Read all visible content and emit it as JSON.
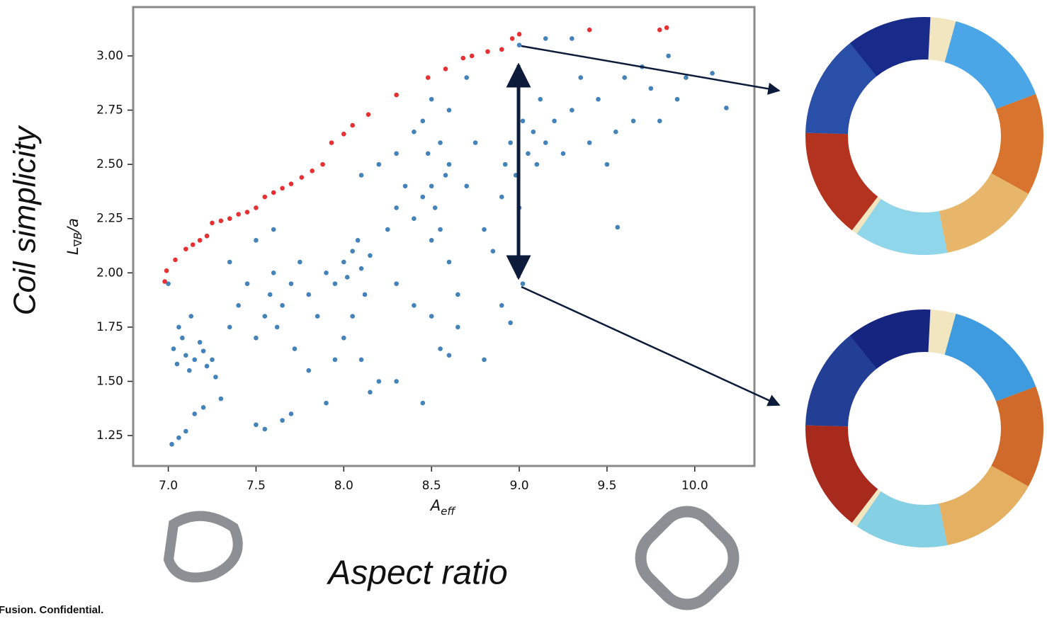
{
  "chart_data": {
    "type": "scatter",
    "ylabel": [
      "L",
      "∇B",
      "/a"
    ],
    "xlabel": [
      "A",
      "eff"
    ],
    "annotations": [
      "Coil simplicity",
      "Aspect ratio",
      "Fusion. Confidential."
    ],
    "xlim": [
      6.8,
      10.34
    ],
    "ylim": [
      1.11,
      3.225
    ],
    "xticks": [
      {
        "value": 7.0,
        "label": "7.0"
      },
      {
        "value": 7.5,
        "label": "7.5"
      },
      {
        "value": 8.0,
        "label": "8.0"
      },
      {
        "value": 8.5,
        "label": "8.5"
      },
      {
        "value": 9.0,
        "label": "9.0"
      },
      {
        "value": 9.5,
        "label": "9.5"
      },
      {
        "value": 10.0,
        "label": "10.0"
      }
    ],
    "yticks": [
      {
        "value": 1.25,
        "label": "1.25"
      },
      {
        "value": 1.5,
        "label": "1.50"
      },
      {
        "value": 1.75,
        "label": "1.75"
      },
      {
        "value": 2.0,
        "label": "2.00"
      },
      {
        "value": 2.25,
        "label": "2.25"
      },
      {
        "value": 2.5,
        "label": "2.50"
      },
      {
        "value": 2.75,
        "label": "2.75"
      },
      {
        "value": 3.0,
        "label": "3.00"
      }
    ],
    "grid": false,
    "series": [
      {
        "color": "#2f76b3",
        "x": [
          7.0,
          7.03,
          7.05,
          7.08,
          7.1,
          7.12,
          7.15,
          7.18,
          7.2,
          7.22,
          7.25,
          7.06,
          7.13,
          7.27,
          7.02,
          7.06,
          7.1,
          7.15,
          7.2,
          7.3,
          7.35,
          7.4,
          7.45,
          7.5,
          7.55,
          7.58,
          7.6,
          7.62,
          7.65,
          7.7,
          7.72,
          7.75,
          7.8,
          7.85,
          7.5,
          7.55,
          7.65,
          7.7,
          7.6,
          7.5,
          7.35,
          7.9,
          7.95,
          8.0,
          8.02,
          8.05,
          8.08,
          8.1,
          8.12,
          8.15,
          8.05,
          8.0,
          8.1,
          8.15,
          8.2,
          7.9,
          8.25,
          8.3,
          8.35,
          8.4,
          8.45,
          8.5,
          8.52,
          8.55,
          8.58,
          8.6,
          8.48,
          8.55,
          8.5,
          8.6,
          8.65,
          8.5,
          8.55,
          8.6,
          8.65,
          8.4,
          8.3,
          8.45,
          8.5,
          8.6,
          8.2,
          8.3,
          8.1,
          8.4,
          8.7,
          8.75,
          8.8,
          8.85,
          8.9,
          8.92,
          8.95,
          8.98,
          9.0,
          9.02,
          9.05,
          9.08,
          9.1,
          9.0,
          9.02,
          9.12,
          9.15,
          9.2,
          9.25,
          9.3,
          9.35,
          9.4,
          9.45,
          9.5,
          9.55,
          9.6,
          9.65,
          9.7,
          9.75,
          9.8,
          9.85,
          9.9,
          9.95,
          10.1,
          10.18,
          9.56,
          8.95,
          9.15,
          9.3,
          8.7,
          8.8,
          8.3,
          8.45,
          8.9,
          7.8,
          7.95
        ],
        "values": [
          1.95,
          1.65,
          1.58,
          1.7,
          1.62,
          1.55,
          1.6,
          1.68,
          1.64,
          1.57,
          1.6,
          1.75,
          1.8,
          1.52,
          1.21,
          1.24,
          1.27,
          1.35,
          1.38,
          1.42,
          1.75,
          1.85,
          1.95,
          1.7,
          1.8,
          1.9,
          2.0,
          1.75,
          1.85,
          1.95,
          1.65,
          2.05,
          1.9,
          1.8,
          1.3,
          1.28,
          1.32,
          1.35,
          2.2,
          2.15,
          2.05,
          2.0,
          1.95,
          2.05,
          1.98,
          2.1,
          2.15,
          2.02,
          1.9,
          2.08,
          1.8,
          1.7,
          1.6,
          1.45,
          1.5,
          1.4,
          2.2,
          2.3,
          2.4,
          2.25,
          2.35,
          2.4,
          2.3,
          2.2,
          2.45,
          2.5,
          2.55,
          2.6,
          2.15,
          2.05,
          1.9,
          1.8,
          1.65,
          1.62,
          1.75,
          1.85,
          1.95,
          2.7,
          2.8,
          2.75,
          2.5,
          2.55,
          2.45,
          2.65,
          2.4,
          2.6,
          2.2,
          2.1,
          2.35,
          2.5,
          2.6,
          2.45,
          2.3,
          2.7,
          2.55,
          2.65,
          2.5,
          3.05,
          1.95,
          2.8,
          2.6,
          2.7,
          2.55,
          2.75,
          2.9,
          2.6,
          2.8,
          2.5,
          2.65,
          2.9,
          2.7,
          2.95,
          2.85,
          2.7,
          3.0,
          2.8,
          2.9,
          2.92,
          2.76,
          2.21,
          1.77,
          3.08,
          3.08,
          2.9,
          1.6,
          1.5,
          1.4,
          1.85,
          1.55,
          1.6
        ]
      },
      {
        "color": "#e31a1c",
        "x": [
          6.98,
          6.99,
          7.04,
          7.1,
          7.14,
          7.18,
          7.22,
          7.25,
          7.3,
          7.35,
          7.4,
          7.45,
          7.5,
          7.55,
          7.6,
          7.65,
          7.7,
          7.76,
          7.82,
          7.88,
          7.93,
          8.0,
          8.05,
          8.14,
          8.3,
          8.48,
          8.58,
          8.68,
          8.73,
          8.82,
          8.9,
          8.96,
          9.0,
          9.4,
          9.8,
          9.84
        ],
        "values": [
          1.96,
          2.01,
          2.06,
          2.11,
          2.13,
          2.15,
          2.17,
          2.23,
          2.24,
          2.25,
          2.27,
          2.28,
          2.3,
          2.35,
          2.37,
          2.39,
          2.41,
          2.44,
          2.47,
          2.5,
          2.6,
          2.64,
          2.68,
          2.73,
          2.82,
          2.9,
          2.94,
          2.99,
          3.0,
          3.02,
          3.03,
          3.08,
          3.1,
          3.12,
          3.12,
          3.13
        ]
      }
    ]
  }
}
